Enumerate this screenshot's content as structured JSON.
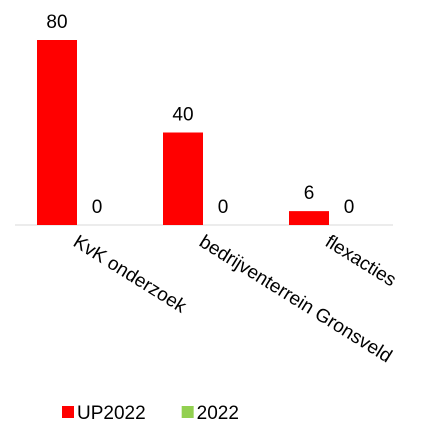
{
  "chart_data": {
    "type": "bar",
    "categories": [
      "KvK onderzoek",
      "bedrijventerrein Gronsveld",
      "flexacties"
    ],
    "series": [
      {
        "name": "UP2022",
        "color": "#ff0000",
        "values": [
          80,
          40,
          6
        ]
      },
      {
        "name": "2022",
        "color": "#92d050",
        "values": [
          0,
          0,
          0
        ]
      }
    ],
    "ylim": [
      0,
      80
    ],
    "legend": "bottom"
  }
}
